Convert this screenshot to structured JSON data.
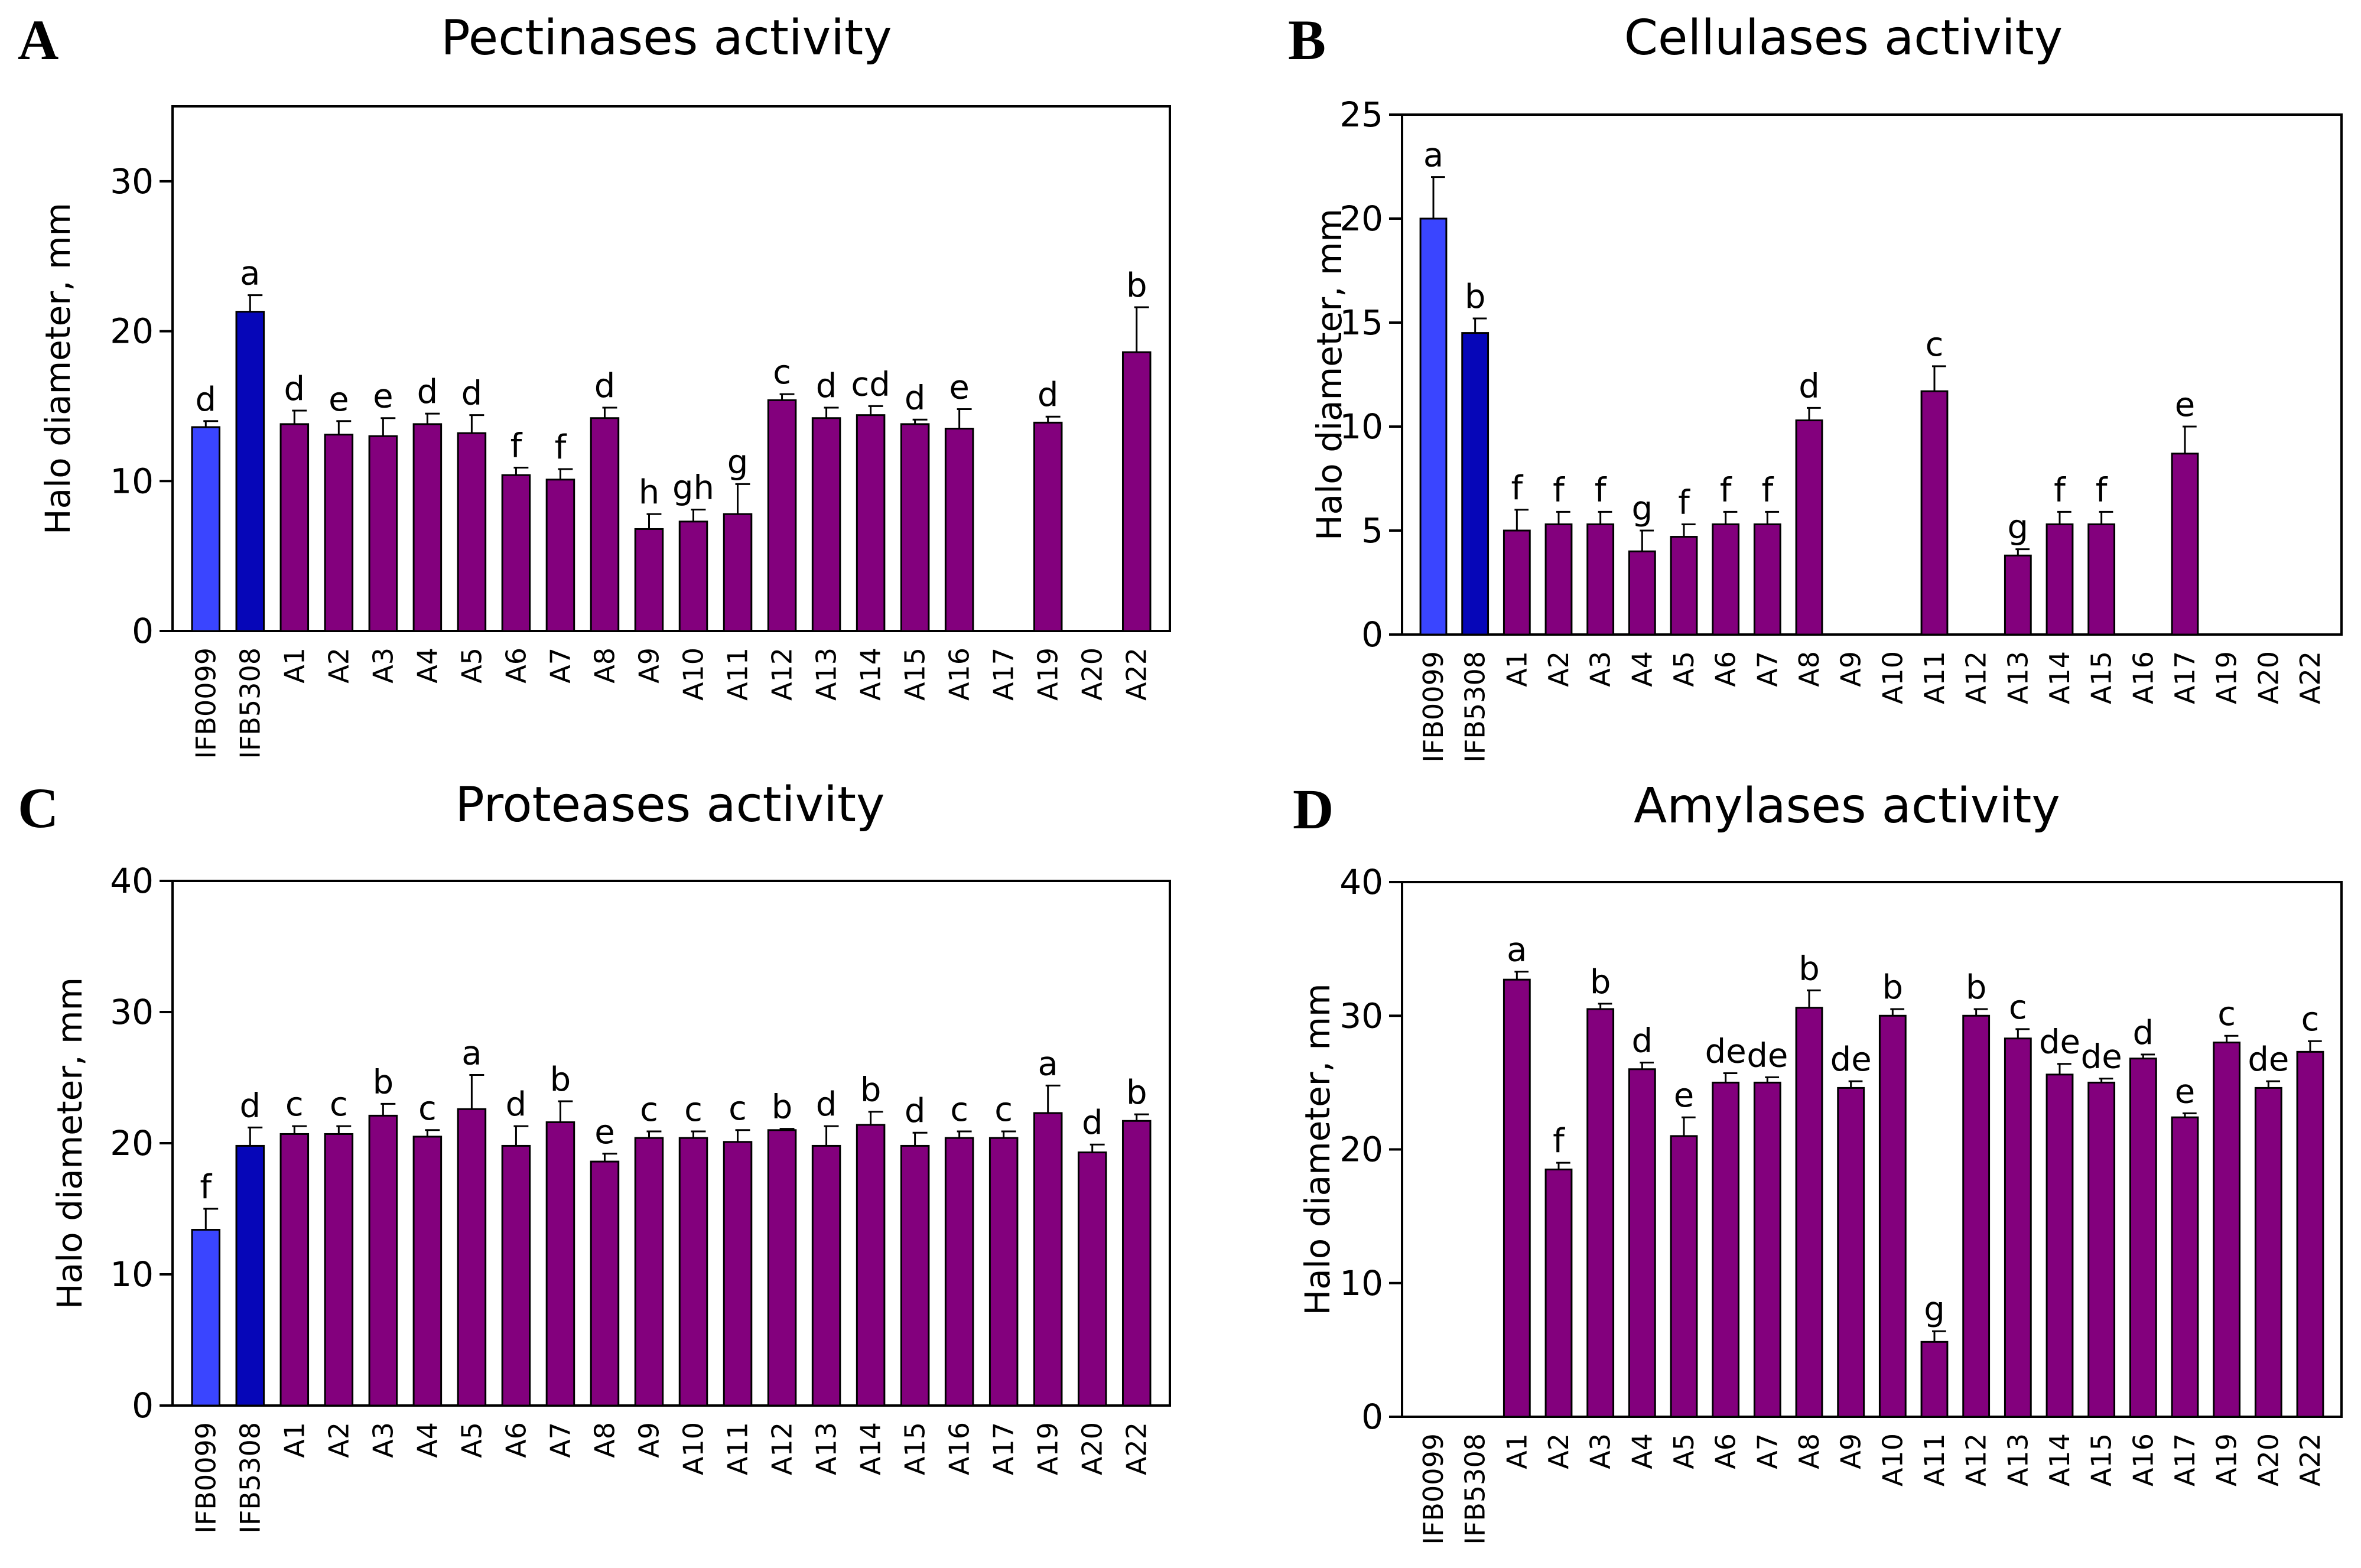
{
  "colors": {
    "control1": "#3A45FF",
    "control2": "#0606B8",
    "isolate": "#83007D",
    "frame": "#000000"
  },
  "chart_data": [
    {
      "panel": "A",
      "type": "bar",
      "title": "Pectinases activity",
      "ylabel": "Halo diameter, mm",
      "ylim": [
        0,
        35
      ],
      "yticks": [
        0,
        10,
        20,
        30
      ],
      "categories": [
        "IFB0099",
        "IFB5308",
        "A1",
        "A2",
        "A3",
        "A4",
        "A5",
        "A6",
        "A7",
        "A8",
        "A9",
        "A10",
        "A11",
        "A12",
        "A13",
        "A14",
        "A15",
        "A16",
        "A17",
        "A19",
        "A20",
        "A22"
      ],
      "values": [
        13.6,
        21.3,
        13.8,
        13.1,
        13.0,
        13.8,
        13.2,
        10.4,
        10.1,
        14.2,
        6.8,
        7.3,
        7.8,
        15.4,
        14.2,
        14.4,
        13.8,
        13.5,
        0,
        13.9,
        0,
        18.6
      ],
      "errors": [
        0.4,
        1.1,
        0.9,
        0.9,
        1.2,
        0.7,
        1.2,
        0.5,
        0.7,
        0.7,
        1.0,
        0.8,
        2.0,
        0.4,
        0.7,
        0.6,
        0.3,
        1.3,
        0,
        0.4,
        0,
        3.0
      ],
      "letters": [
        "d",
        "a",
        "d",
        "e",
        "e",
        "d",
        "d",
        "f",
        "f",
        "d",
        "h",
        "gh",
        "g",
        "c",
        "d",
        "cd",
        "d",
        "e",
        "",
        "d",
        "",
        "b"
      ]
    },
    {
      "panel": "B",
      "type": "bar",
      "title": "Cellulases activity",
      "ylabel": "Halo diameter, mm",
      "ylim": [
        0,
        25
      ],
      "yticks": [
        0,
        5,
        10,
        15,
        20,
        25
      ],
      "categories": [
        "IFB0099",
        "IFB5308",
        "A1",
        "A2",
        "A3",
        "A4",
        "A5",
        "A6",
        "A7",
        "A8",
        "A9",
        "A10",
        "A11",
        "A12",
        "A13",
        "A14",
        "A15",
        "A16",
        "A17",
        "A19",
        "A20",
        "A22"
      ],
      "values": [
        20.0,
        14.5,
        5.0,
        5.3,
        5.3,
        4.0,
        4.7,
        5.3,
        5.3,
        10.3,
        0,
        0,
        11.7,
        0,
        3.8,
        5.3,
        5.3,
        0,
        8.7,
        0,
        0,
        0
      ],
      "errors": [
        2.0,
        0.7,
        1.0,
        0.6,
        0.6,
        1.0,
        0.6,
        0.6,
        0.6,
        0.6,
        0,
        0,
        1.2,
        0,
        0.3,
        0.6,
        0.6,
        0,
        1.3,
        0,
        0,
        0
      ],
      "letters": [
        "a",
        "b",
        "f",
        "f",
        "f",
        "g",
        "f",
        "f",
        "f",
        "d",
        "",
        "",
        "c",
        "",
        "g",
        "f",
        "f",
        "",
        "e",
        "",
        "",
        ""
      ]
    },
    {
      "panel": "C",
      "type": "bar",
      "title": "Proteases activity",
      "ylabel": "Halo diameter, mm",
      "ylim": [
        0,
        40
      ],
      "yticks": [
        0,
        10,
        20,
        30,
        40
      ],
      "categories": [
        "IFB0099",
        "IFB5308",
        "A1",
        "A2",
        "A3",
        "A4",
        "A5",
        "A6",
        "A7",
        "A8",
        "A9",
        "A10",
        "A11",
        "A12",
        "A13",
        "A14",
        "A15",
        "A16",
        "A17",
        "A19",
        "A20",
        "A22"
      ],
      "values": [
        13.4,
        19.8,
        20.7,
        20.7,
        22.1,
        20.5,
        22.6,
        19.8,
        21.6,
        18.6,
        20.4,
        20.4,
        20.1,
        21.0,
        19.8,
        21.4,
        19.8,
        20.4,
        20.4,
        22.3,
        19.3,
        21.7
      ],
      "errors": [
        1.6,
        1.4,
        0.6,
        0.6,
        0.9,
        0.5,
        2.6,
        1.5,
        1.6,
        0.6,
        0.5,
        0.5,
        0.9,
        0.1,
        1.5,
        1.0,
        1.0,
        0.5,
        0.5,
        2.1,
        0.6,
        0.5
      ],
      "letters": [
        "f",
        "d",
        "c",
        "c",
        "b",
        "c",
        "a",
        "d",
        "b",
        "e",
        "c",
        "c",
        "c",
        "b",
        "d",
        "b",
        "d",
        "c",
        "c",
        "a",
        "d",
        "b"
      ]
    },
    {
      "panel": "D",
      "type": "bar",
      "title": "Amylases activity",
      "ylabel": "Halo diameter, mm",
      "ylim": [
        0,
        40
      ],
      "yticks": [
        0,
        10,
        20,
        30,
        40
      ],
      "categories": [
        "IFB0099",
        "IFB5308",
        "A1",
        "A2",
        "A3",
        "A4",
        "A5",
        "A6",
        "A7",
        "A8",
        "A9",
        "A10",
        "A11",
        "A12",
        "A13",
        "A14",
        "A15",
        "A16",
        "A17",
        "A19",
        "A20",
        "A22"
      ],
      "values": [
        0,
        0,
        32.7,
        18.5,
        30.5,
        26.0,
        21.0,
        25.0,
        25.0,
        30.6,
        24.6,
        30.0,
        5.6,
        30.0,
        28.3,
        25.6,
        25.0,
        26.8,
        22.4,
        28.0,
        24.6,
        27.3
      ],
      "errors": [
        0,
        0,
        0.6,
        0.5,
        0.4,
        0.5,
        1.4,
        0.7,
        0.4,
        1.3,
        0.5,
        0.5,
        0.8,
        0.5,
        0.7,
        0.8,
        0.3,
        0.3,
        0.3,
        0.5,
        0.5,
        0.8
      ],
      "letters": [
        "",
        "",
        "a",
        "f",
        "b",
        "d",
        "e",
        "de",
        "de",
        "b",
        "de",
        "b",
        "g",
        "b",
        "c",
        "de",
        "de",
        "d",
        "e",
        "c",
        "de",
        "c"
      ]
    }
  ]
}
